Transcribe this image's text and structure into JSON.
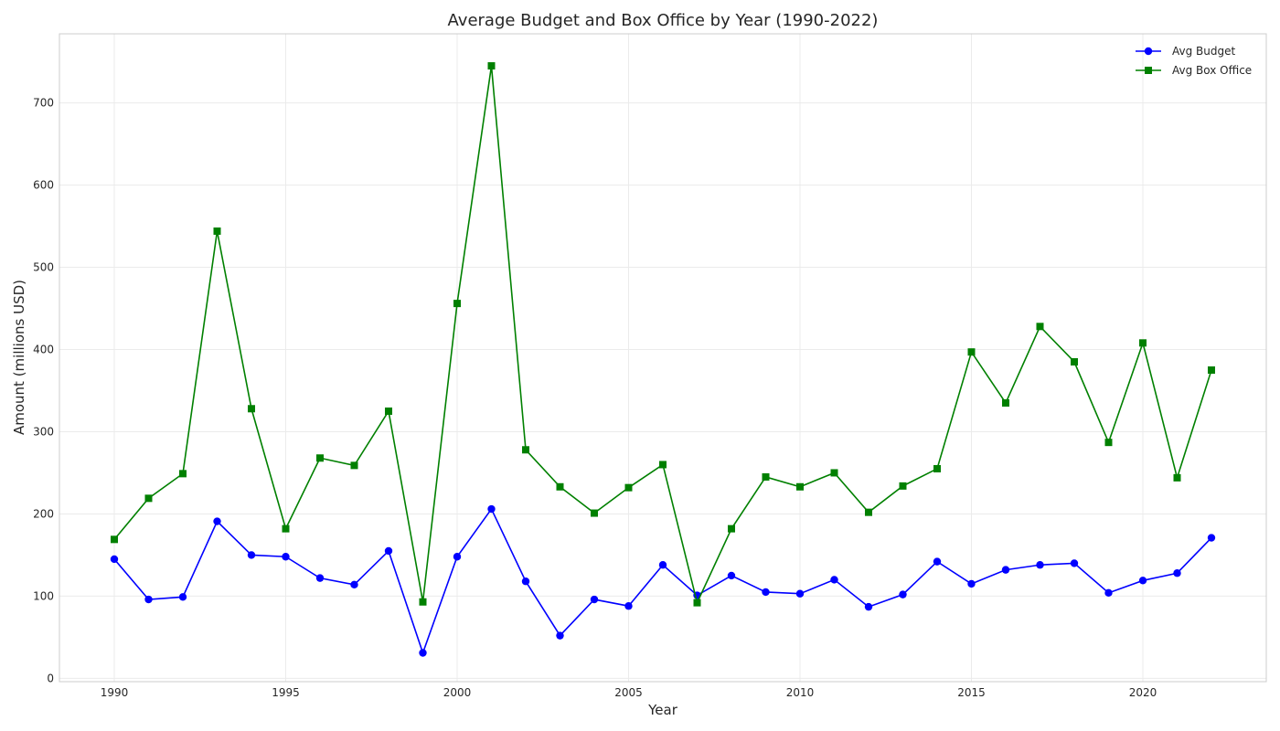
{
  "chart_data": {
    "type": "line",
    "title": "Average Budget and Box Office by Year (1990-2022)",
    "xlabel": "Year",
    "ylabel": "Amount (millions USD)",
    "x": [
      1990,
      1991,
      1992,
      1993,
      1994,
      1995,
      1996,
      1997,
      1998,
      1999,
      2000,
      2001,
      2002,
      2003,
      2004,
      2005,
      2006,
      2007,
      2008,
      2009,
      2010,
      2011,
      2012,
      2013,
      2014,
      2015,
      2016,
      2017,
      2018,
      2019,
      2020,
      2021,
      2022
    ],
    "xlim": [
      1988.4,
      2023.6
    ],
    "ylim": [
      -4,
      784
    ],
    "xticks": [
      1990,
      1995,
      2000,
      2005,
      2010,
      2015,
      2020
    ],
    "yticks": [
      0,
      100,
      200,
      300,
      400,
      500,
      600,
      700
    ],
    "grid": true,
    "legend_position": "top-right",
    "series": [
      {
        "name": "Avg Budget",
        "color": "#0000ff",
        "marker": "circle",
        "values": [
          145,
          96,
          99,
          191,
          150,
          148,
          122,
          114,
          155,
          31,
          148,
          206,
          118,
          52,
          96,
          88,
          138,
          101,
          125,
          105,
          103,
          120,
          87,
          102,
          142,
          115,
          132,
          138,
          140,
          104,
          119,
          128,
          171
        ]
      },
      {
        "name": "Avg Box Office",
        "color": "#008000",
        "marker": "square",
        "values": [
          169,
          219,
          249,
          544,
          328,
          182,
          268,
          259,
          325,
          93,
          456,
          745,
          278,
          233,
          201,
          232,
          260,
          92,
          182,
          245,
          233,
          250,
          202,
          234,
          255,
          397,
          335,
          428,
          385,
          287,
          408,
          244,
          375
        ]
      }
    ]
  }
}
